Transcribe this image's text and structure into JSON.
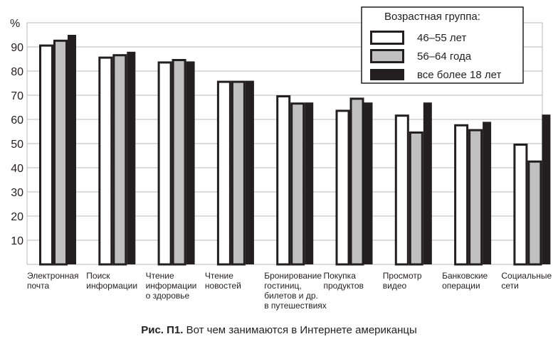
{
  "chart_data": {
    "type": "bar",
    "title": "Вот чем занимаются в Интернете американцы",
    "caption_prefix": "Рис. П1.",
    "ylabel": "%",
    "xlabel": "",
    "ylim": [
      0,
      100
    ],
    "yticks": [
      10,
      20,
      30,
      40,
      50,
      60,
      70,
      80,
      90
    ],
    "grid": true,
    "legend_title": "Возрастная группа:",
    "legend_position": "top-right",
    "categories": [
      [
        "Электронная",
        "почта"
      ],
      [
        "Поиск",
        "информации"
      ],
      [
        "Чтение",
        "информации",
        "о здоровье"
      ],
      [
        "Чтение",
        "новостей"
      ],
      [
        "Бронирование",
        "гостиниц,",
        "билетов и др.",
        "в путешествиях"
      ],
      [
        "Покупка",
        "продуктов"
      ],
      [
        "Просмотр",
        "видео"
      ],
      [
        "Банковские",
        "операции"
      ],
      [
        "Социальные",
        "сети"
      ]
    ],
    "series": [
      {
        "name": "46–55 лет",
        "color": "#ffffff",
        "values": [
          91,
          86,
          84,
          76,
          70,
          64,
          62,
          58,
          50
        ]
      },
      {
        "name": "56–64 года",
        "color": "#c0c0c0",
        "values": [
          93,
          87,
          85,
          76,
          67,
          69,
          55,
          56,
          43
        ]
      },
      {
        "name": "все более 18 лет",
        "color": "#231f20",
        "values": [
          95,
          88,
          84,
          76,
          67,
          67,
          67,
          59,
          62
        ]
      }
    ]
  }
}
